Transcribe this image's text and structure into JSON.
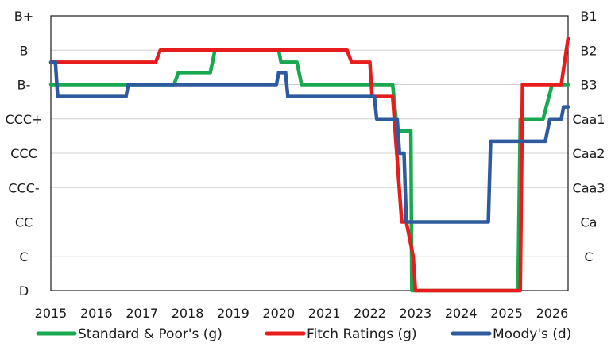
{
  "chart_data": {
    "type": "line",
    "x_ticks": [
      "2015",
      "2016",
      "2017",
      "2018",
      "2019",
      "2020",
      "2021",
      "2022",
      "2023",
      "2024",
      "2025",
      "2026"
    ],
    "xlim": [
      2015.0,
      2026.35
    ],
    "y_left_ticks": [
      "B+",
      "B",
      "B-",
      "CCC+",
      "CCC",
      "CCC-",
      "CC",
      "C",
      "D"
    ],
    "y_right_ticks": [
      "B1",
      "B2",
      "B3",
      "Caa1",
      "Caa2",
      "Caa3",
      "Ca",
      "C"
    ],
    "ylim": [
      0,
      8
    ],
    "grid": true,
    "legend_position": "bottom",
    "series": [
      {
        "name": "Standard & Poor's (g)",
        "color": "#18a84f",
        "x": [
          2015.0,
          2017.7,
          2017.8,
          2018.5,
          2018.6,
          2020.0,
          2020.05,
          2020.4,
          2020.5,
          2022.5,
          2022.6,
          2022.9,
          2022.92,
          2025.25,
          2025.3,
          2025.8,
          2026.0,
          2026.35
        ],
        "y": [
          6,
          6,
          6.35,
          6.35,
          7,
          7,
          6.65,
          6.65,
          6,
          6,
          4.65,
          4.65,
          0,
          0,
          5,
          5,
          6,
          6
        ]
      },
      {
        "name": "Fitch Ratings (g)",
        "color": "#e81c1c",
        "x": [
          2015.0,
          2017.3,
          2017.4,
          2021.5,
          2021.6,
          2022.0,
          2022.05,
          2022.5,
          2022.7,
          2022.8,
          2022.95,
          2023.0,
          2025.3,
          2025.35,
          2026.2,
          2026.35
        ],
        "y": [
          6.65,
          6.65,
          7,
          7,
          6.65,
          6.65,
          5.65,
          5.65,
          2,
          2,
          1,
          0,
          0,
          6,
          6,
          7.35
        ]
      },
      {
        "name": "Moody's (d)",
        "color": "#2e5a9e",
        "x": [
          2015.0,
          2015.1,
          2015.15,
          2016.65,
          2016.7,
          2019.95,
          2020.0,
          2020.15,
          2020.2,
          2022.1,
          2022.15,
          2022.6,
          2022.65,
          2022.75,
          2022.8,
          2024.6,
          2024.65,
          2025.85,
          2025.95,
          2026.2,
          2026.25,
          2026.35
        ],
        "y": [
          6.65,
          6.65,
          5.65,
          5.65,
          6,
          6,
          6.35,
          6.35,
          5.65,
          5.65,
          5,
          5,
          4,
          4,
          2,
          2,
          4.35,
          4.35,
          5,
          5,
          5.35,
          5.35
        ]
      }
    ]
  }
}
